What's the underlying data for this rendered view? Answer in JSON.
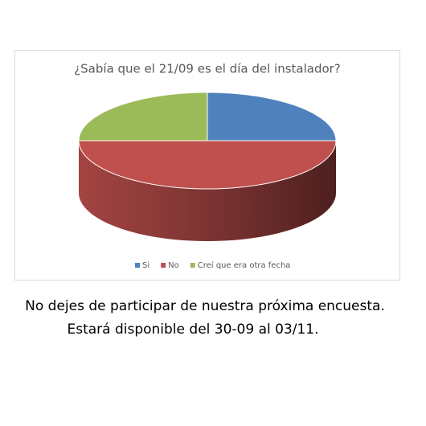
{
  "chart_data": {
    "type": "pie",
    "title": "¿Sabía que el 21/09 es el día del instalador?",
    "categories": [
      "Si",
      "No",
      "Creí que era otra fecha"
    ],
    "values": [
      25,
      50,
      25
    ],
    "colors": [
      "#4f81bd",
      "#c0504d",
      "#9bbb59"
    ]
  },
  "caption": [
    "No dejes de participar de nuestra próxima encuesta.",
    "Estará disponible del 30-09 al 03/11."
  ]
}
